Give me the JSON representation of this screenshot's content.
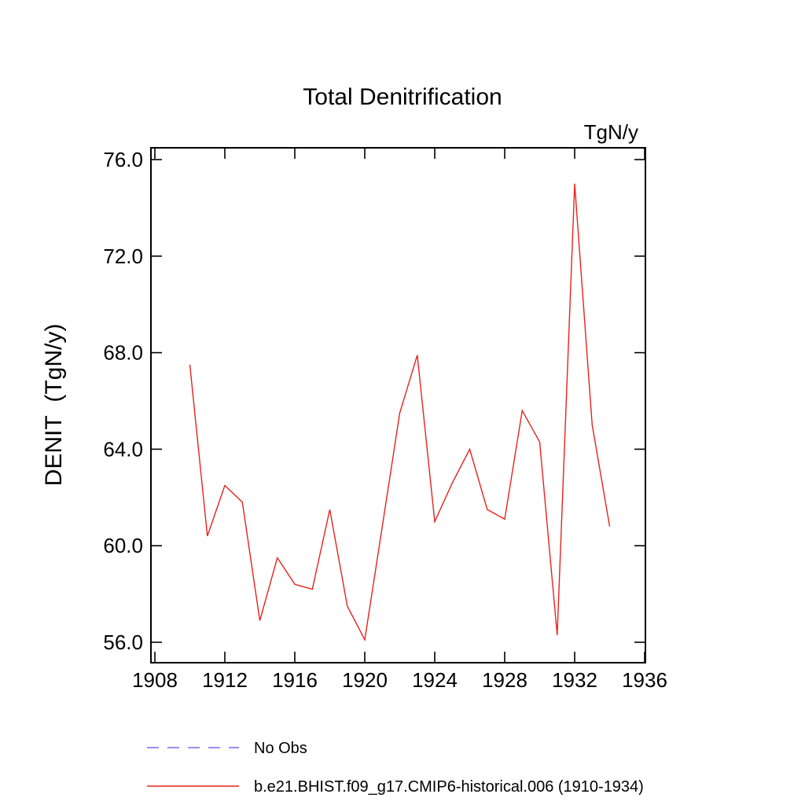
{
  "chart_data": {
    "type": "line",
    "title": "Total Denitrification",
    "unit_label": "TgN/y",
    "ylabel": "DENIT  (TgN/y)",
    "xlim": [
      1908,
      1936
    ],
    "ylim": [
      56.0,
      76.0
    ],
    "xticks": [
      1908,
      1912,
      1916,
      1920,
      1924,
      1928,
      1932,
      1936
    ],
    "xtick_labels": [
      "1908",
      "1912",
      "1916",
      "1920",
      "1924",
      "1928",
      "1932",
      "1936"
    ],
    "yticks": [
      56.0,
      60.0,
      64.0,
      68.0,
      72.0,
      76.0
    ],
    "ytick_labels": [
      "56.0",
      "60.0",
      "64.0",
      "68.0",
      "72.0",
      "76.0"
    ],
    "grid": false,
    "legend_position": "bottom-left",
    "series": [
      {
        "name": "b.e21.BHIST.f09_g17.CMIP6-historical.006 (1910-1934)",
        "color": "#e8221c",
        "style": "solid",
        "x": [
          1910,
          1911,
          1912,
          1913,
          1914,
          1915,
          1916,
          1917,
          1918,
          1919,
          1920,
          1921,
          1922,
          1923,
          1924,
          1925,
          1926,
          1927,
          1928,
          1929,
          1930,
          1931,
          1932,
          1933,
          1934
        ],
        "values": [
          67.5,
          60.4,
          62.5,
          61.8,
          56.9,
          59.5,
          58.4,
          58.2,
          61.5,
          57.5,
          56.1,
          60.8,
          65.5,
          67.9,
          61.0,
          62.6,
          64.0,
          61.5,
          61.1,
          65.6,
          64.3,
          56.3,
          75.0,
          65.0,
          60.8
        ]
      }
    ],
    "legend": [
      {
        "label": "No Obs",
        "color": "#7b68ee",
        "style": "dashed"
      },
      {
        "label": "b.e21.BHIST.f09_g17.CMIP6-historical.006 (1910-1934)",
        "color": "#e8221c",
        "style": "solid"
      }
    ]
  }
}
